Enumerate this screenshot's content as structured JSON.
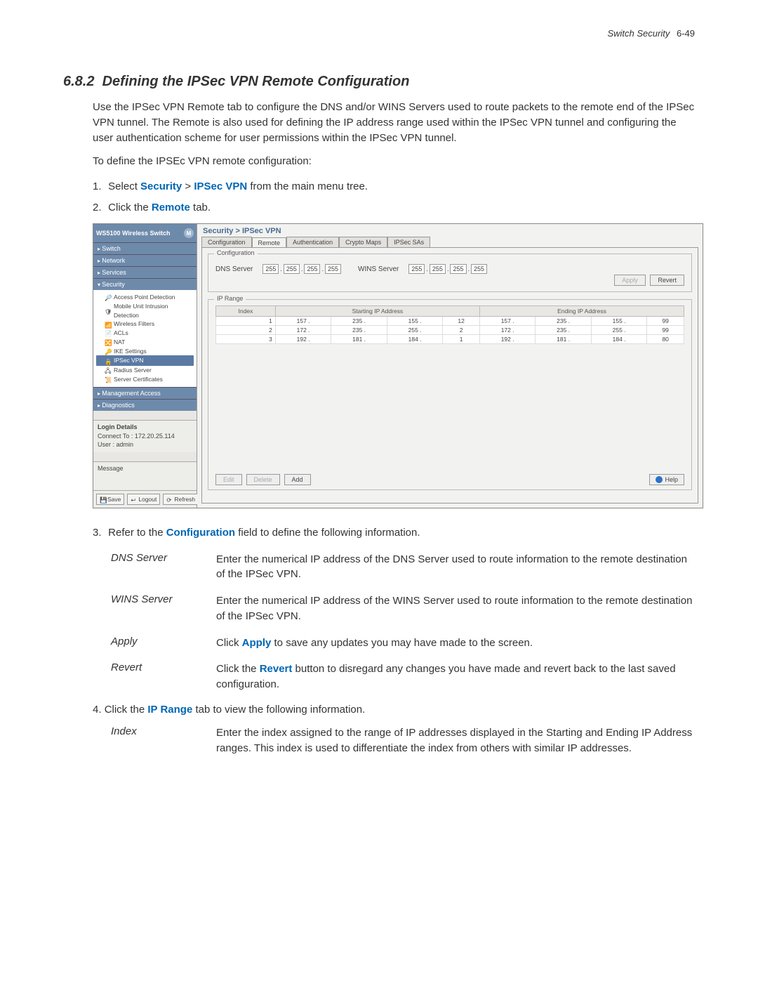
{
  "header": {
    "label": "Switch Security",
    "page": "6-49"
  },
  "section": {
    "number": "6.8.2",
    "title": "Defining the IPSec VPN Remote Configuration",
    "intro": "Use the IPSec VPN Remote tab to configure the DNS and/or WINS Servers used to route packets to the remote end of the IPSec VPN tunnel. The Remote is also used for defining the IP address range used within the IPSec VPN tunnel and configuring the user authentication scheme for user permissions within the IPSec VPN tunnel.",
    "lead": "To define the IPSEc VPN remote configuration:",
    "step1_pre": "Select ",
    "step1_a": "Security",
    "step1_gt": " > ",
    "step1_b": "IPSec VPN",
    "step1_post": " from the main menu tree.",
    "step2_pre": "Click the ",
    "step2_a": "Remote",
    "step2_post": " tab.",
    "step3_pre": "Refer to the ",
    "step3_a": "Configuration",
    "step3_post": " field to define the following information.",
    "step4_pre": "Click the ",
    "step4_a": "IP Range",
    "step4_post": " tab to view the following information."
  },
  "screenshot": {
    "product": "WS5100 Wireless Switch",
    "breadcrumb": "Security > IPSec VPN",
    "nav": {
      "groups": [
        "Switch",
        "Network",
        "Services",
        "Security",
        "Management Access",
        "Diagnostics"
      ],
      "security_items": [
        "Access Point Detection",
        "Mobile Unit Intrusion Detection",
        "Wireless Filters",
        "ACLs",
        "NAT",
        "IKE Settings",
        "IPSec VPN",
        "Radius Server",
        "Server Certificates"
      ],
      "selected": "IPSec VPN"
    },
    "tabs": [
      "Configuration",
      "Remote",
      "Authentication",
      "Crypto Maps",
      "IPSec SAs"
    ],
    "active_tab": 1,
    "config_fieldset": "Configuration",
    "dns_label": "DNS Server",
    "wins_label": "WINS Server",
    "dns_ip": [
      "255",
      "255",
      "255",
      "255"
    ],
    "wins_ip": [
      "255",
      "255",
      "255",
      "255"
    ],
    "apply_btn": "Apply",
    "revert_btn": "Revert",
    "iprange_fieldset": "IP Range",
    "table_headers": [
      "Index",
      "Starting IP Address",
      "Ending IP Address"
    ],
    "rows": [
      {
        "idx": "1",
        "start": [
          "157",
          "235",
          "155",
          "12"
        ],
        "end": [
          "157",
          "235",
          "155",
          "99"
        ]
      },
      {
        "idx": "2",
        "start": [
          "172",
          "235",
          "255",
          "2"
        ],
        "end": [
          "172",
          "235",
          "255",
          "99"
        ]
      },
      {
        "idx": "3",
        "start": [
          "192",
          "181",
          "184",
          "1"
        ],
        "end": [
          "192",
          "181",
          "184",
          "80"
        ]
      }
    ],
    "edit_btn": "Edit",
    "delete_btn": "Delete",
    "add_btn": "Add",
    "help_btn": "Help",
    "login": {
      "title": "Login Details",
      "connect_lbl": "Connect To :",
      "connect": "172.20.25.114",
      "user_lbl": "User :",
      "user": "admin",
      "msg_lbl": "Message"
    },
    "footer_btns": [
      "Save",
      "Logout",
      "Refresh"
    ]
  },
  "defs1": [
    {
      "term": "DNS Server",
      "desc": "Enter the numerical IP address of the DNS Server used to route information to the remote destination of the IPSec VPN."
    },
    {
      "term": "WINS Server",
      "desc": "Enter the numerical IP address of the WINS Server used to route information to the remote destination of the IPSec VPN."
    },
    {
      "term": "Apply",
      "desc_pre": "Click ",
      "desc_b": "Apply",
      "desc_post": " to save any updates you may have made to the screen."
    },
    {
      "term": "Revert",
      "desc_pre": "Click the ",
      "desc_b": "Revert",
      "desc_post": " button to disregard any changes you have made and revert back to the last saved configuration."
    }
  ],
  "defs2": [
    {
      "term": "Index",
      "desc": "Enter the index assigned to the range of IP addresses displayed in the Starting and Ending IP Address ranges. This index is used to differentiate the index from others with similar IP addresses."
    }
  ],
  "colors": {
    "link": "#0066b3"
  }
}
